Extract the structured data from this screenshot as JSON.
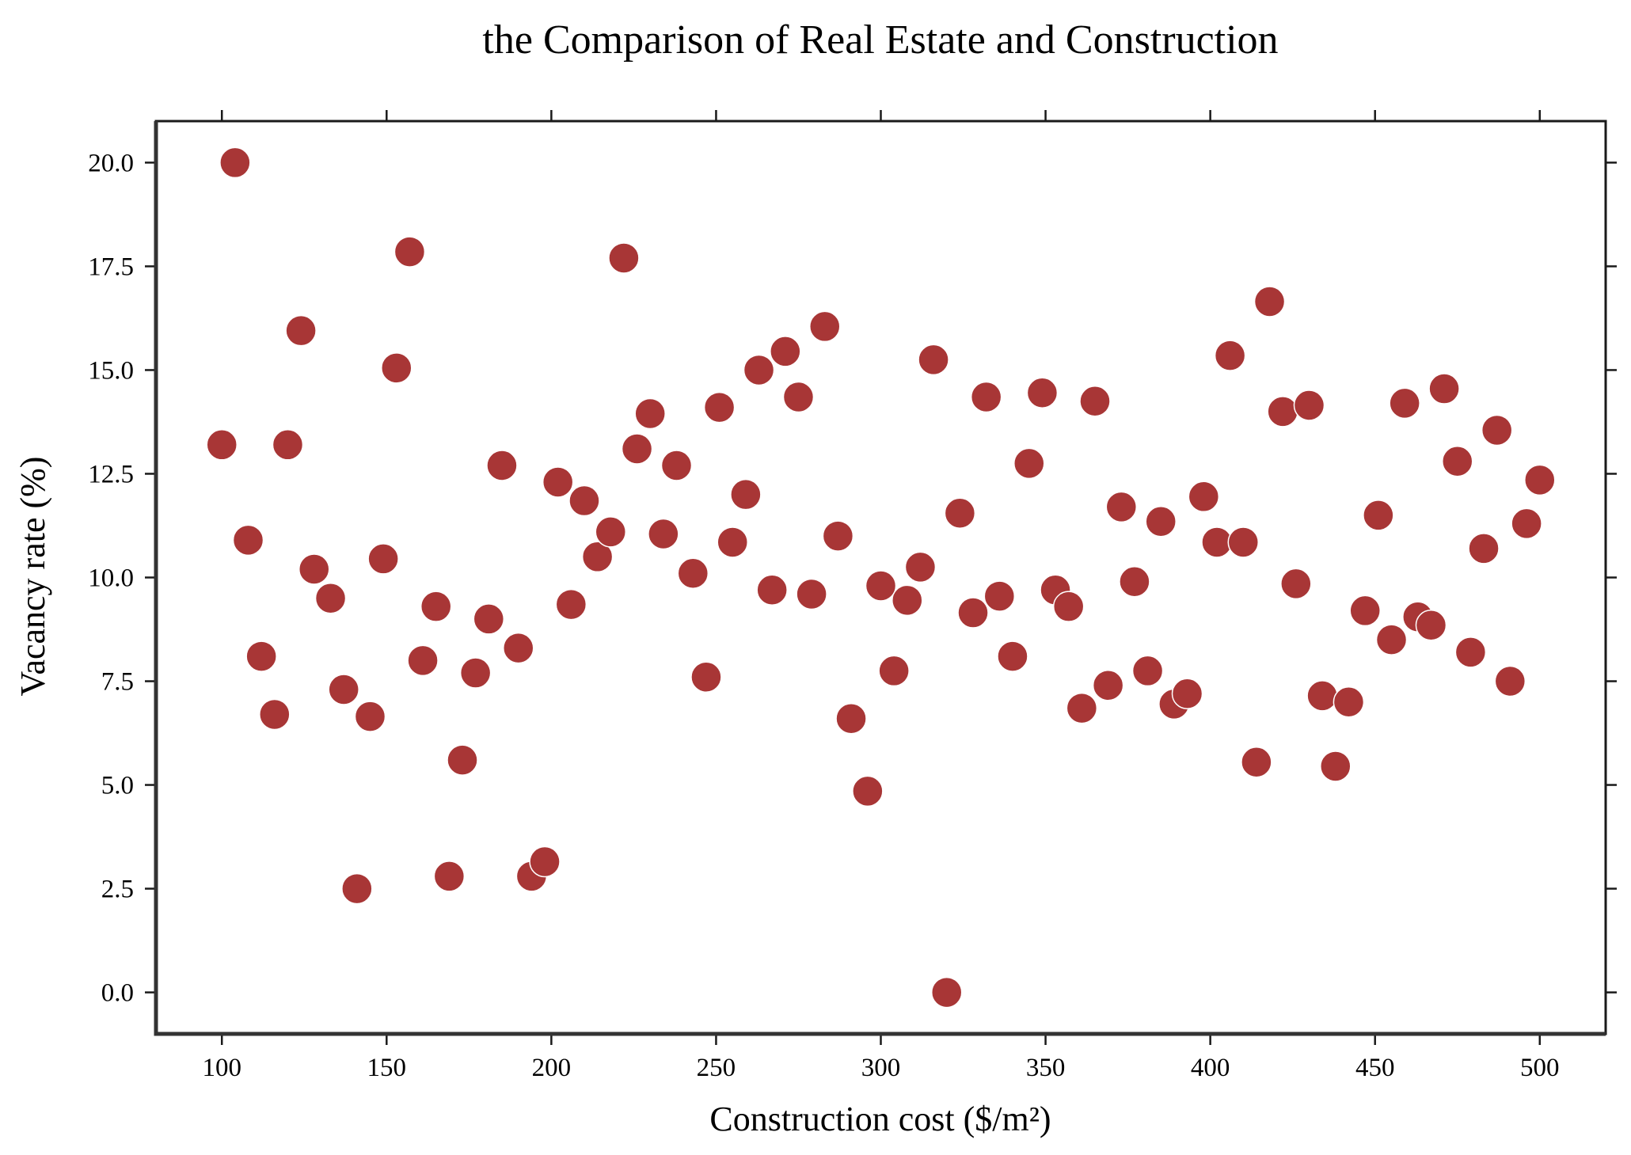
{
  "chart_data": {
    "type": "scatter",
    "title": "the Comparison of Real Estate and Construction",
    "xlabel": "Construction cost ($/m²)",
    "ylabel": "Vacancy rate (%)",
    "xlim": [
      80,
      520
    ],
    "ylim": [
      -1.0,
      21.0
    ],
    "xticks": [
      100,
      150,
      200,
      250,
      300,
      350,
      400,
      450,
      500
    ],
    "yticks": [
      0.0,
      2.5,
      5.0,
      7.5,
      10.0,
      12.5,
      15.0,
      17.5,
      20.0
    ],
    "xtick_labels": [
      "100",
      "150",
      "200",
      "250",
      "300",
      "350",
      "400",
      "450",
      "500"
    ],
    "ytick_labels": [
      "0.0",
      "2.5",
      "5.0",
      "7.5",
      "10.0",
      "12.5",
      "15.0",
      "17.5",
      "20.0"
    ],
    "grid": false,
    "marker_color": "#a83636",
    "marker_edge_color": "#ffffff",
    "series": [
      {
        "x": [
          100,
          104,
          108,
          112,
          116,
          120,
          124,
          128,
          133,
          137,
          141,
          145,
          149,
          153,
          157,
          161,
          165,
          169,
          173,
          177,
          181,
          185,
          190,
          194,
          198,
          202,
          206,
          210,
          214,
          218,
          222,
          226,
          230,
          234,
          238,
          243,
          247,
          251,
          255,
          259,
          263,
          267,
          271,
          275,
          279,
          283,
          287,
          291,
          296,
          300,
          304,
          308,
          312,
          316,
          320,
          324,
          328,
          332,
          336,
          340,
          345,
          349,
          353,
          357,
          361,
          365,
          369,
          373,
          377,
          381,
          385,
          389,
          393,
          398,
          402,
          406,
          410,
          414,
          418,
          422,
          426,
          430,
          434,
          438,
          442,
          447,
          451,
          455,
          459,
          463,
          467,
          471,
          475,
          479,
          483,
          487,
          491,
          496,
          500
        ],
        "y": [
          13.2,
          20.0,
          10.9,
          8.1,
          6.7,
          13.2,
          15.95,
          10.2,
          9.5,
          7.3,
          2.5,
          6.65,
          10.45,
          15.05,
          17.85,
          8.0,
          9.3,
          2.8,
          5.6,
          7.7,
          9.0,
          12.7,
          8.3,
          2.8,
          3.15,
          12.3,
          9.35,
          11.85,
          10.5,
          11.1,
          17.7,
          13.1,
          13.95,
          11.05,
          12.7,
          10.1,
          7.6,
          14.1,
          10.85,
          12.0,
          15.0,
          9.7,
          15.45,
          14.35,
          9.6,
          16.05,
          11.0,
          6.6,
          4.85,
          9.8,
          7.75,
          9.45,
          10.25,
          15.25,
          0.0,
          11.55,
          9.15,
          14.35,
          9.55,
          8.1,
          12.75,
          14.45,
          9.7,
          9.3,
          6.85,
          14.25,
          7.4,
          11.7,
          9.9,
          7.75,
          11.35,
          6.95,
          7.2,
          11.95,
          10.85,
          15.35,
          10.85,
          5.55,
          16.65,
          14.0,
          9.85,
          14.15,
          7.15,
          5.45,
          7.0,
          9.2,
          11.5,
          8.5,
          14.2,
          9.05,
          8.85,
          14.55,
          12.8,
          8.2,
          10.7,
          13.55,
          7.5,
          11.3,
          12.35
        ]
      }
    ]
  }
}
